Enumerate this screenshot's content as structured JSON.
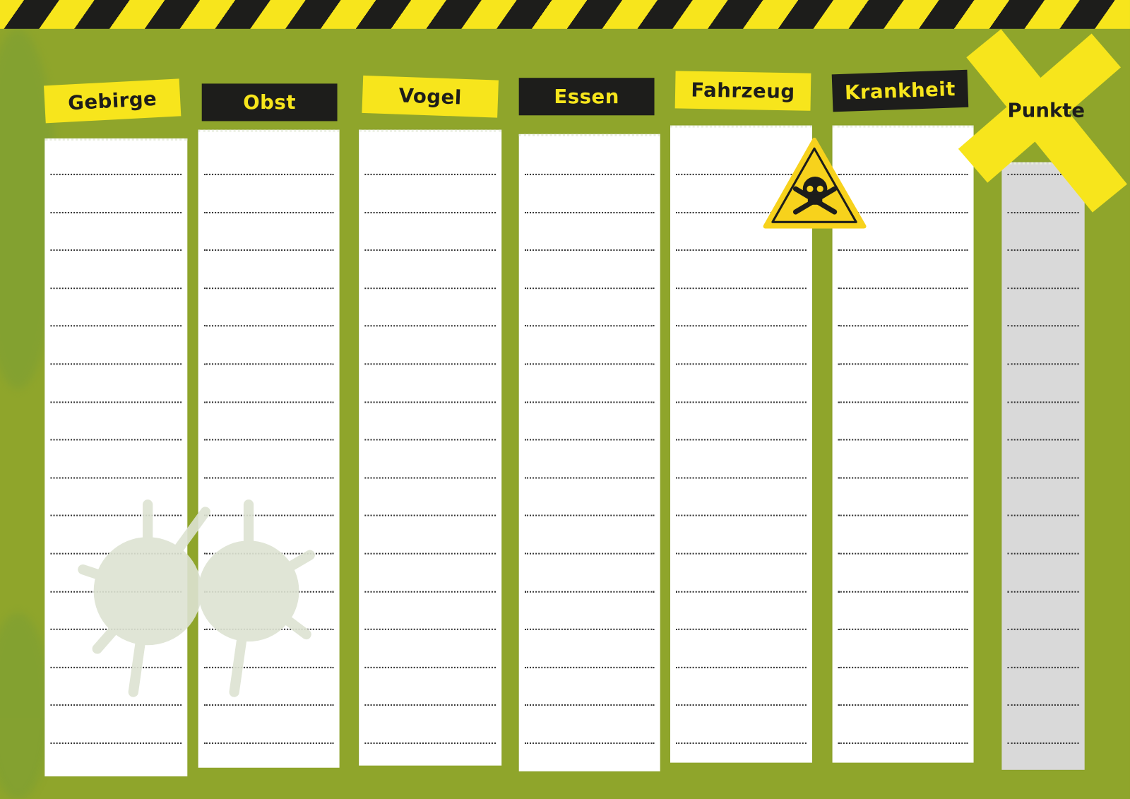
{
  "colors": {
    "background": "#8fa52b",
    "stripe_yellow": "#f7e51c",
    "stripe_black": "#1d1d1b",
    "paper": "#ffffff",
    "points_column": "#d9d9d9"
  },
  "categories": [
    {
      "label": "Gebirge",
      "style": "yellow"
    },
    {
      "label": "Obst",
      "style": "black"
    },
    {
      "label": "Vogel",
      "style": "yellow"
    },
    {
      "label": "Essen",
      "style": "black"
    },
    {
      "label": "Fahrzeug",
      "style": "yellow"
    },
    {
      "label": "Krankheit",
      "style": "black"
    }
  ],
  "points": {
    "label": "Punkte"
  },
  "rows_per_column": 16,
  "icons": {
    "warning": "skull-crossbones-warning-icon",
    "decoration": "virus-icon",
    "mark": "x-mark-icon"
  }
}
